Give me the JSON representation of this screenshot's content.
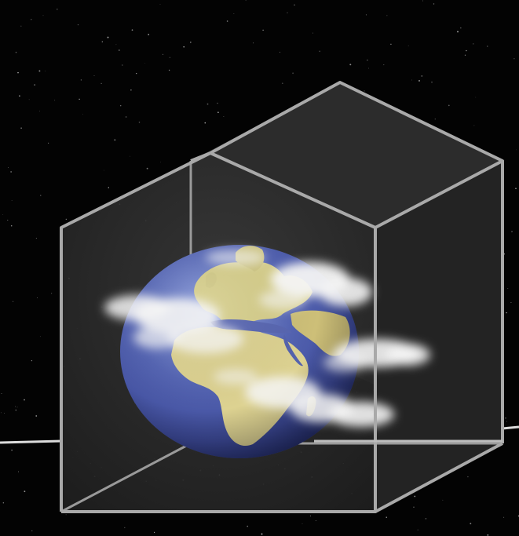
{
  "image": {
    "subject": "earth-inside-wireframe-cube",
    "colors": {
      "space_background": "#030303",
      "star": "#d8d8d8",
      "cube_edge": "#a9a9a9",
      "cube_face_fill": "#303030",
      "ocean": "#4a56a6",
      "land": "#d9cf8a",
      "cloud": "#f4f4f4",
      "orbit_line": "#dcdcdc"
    }
  }
}
